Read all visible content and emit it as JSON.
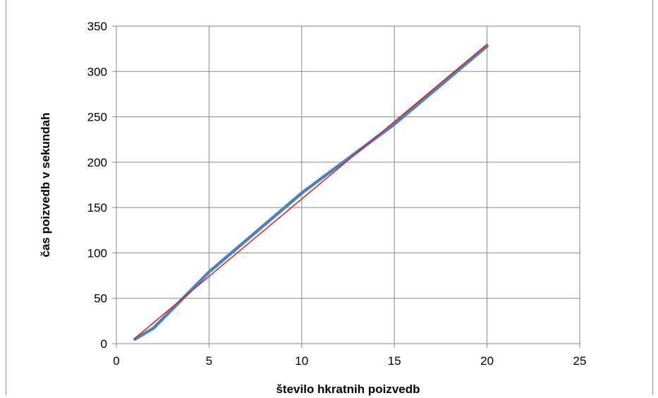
{
  "chart_data": {
    "type": "line",
    "title": "",
    "xlabel": "število hkratnih poizvedb",
    "ylabel": "čas poizvedb v sekundah",
    "xlim": [
      0,
      25
    ],
    "ylim": [
      0,
      350
    ],
    "xticks": [
      0,
      5,
      10,
      15,
      20,
      25
    ],
    "yticks": [
      0,
      50,
      100,
      150,
      200,
      250,
      300,
      350
    ],
    "grid": true,
    "legend": "none",
    "series": [
      {
        "color": "#4f81bd",
        "x": [
          1,
          2,
          5,
          10,
          15,
          20
        ],
        "y": [
          5,
          17,
          79,
          166,
          242,
          328
        ]
      },
      {
        "color": "#e31a1c",
        "x": [
          1,
          20
        ],
        "y": [
          6,
          330
        ]
      }
    ]
  }
}
